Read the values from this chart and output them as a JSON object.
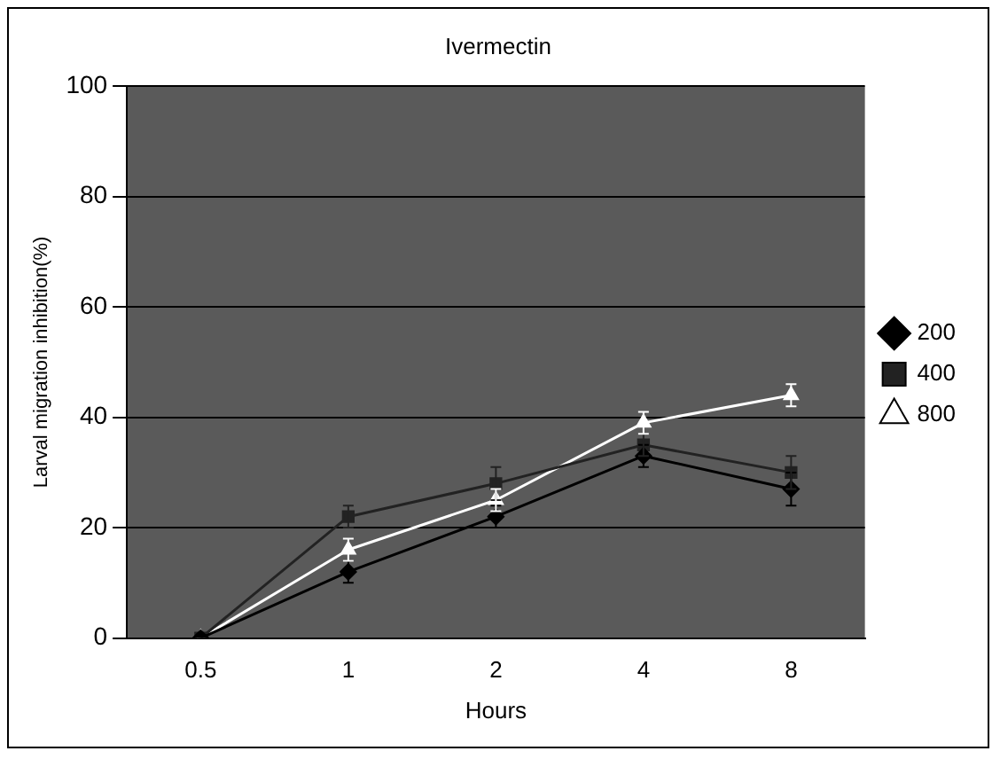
{
  "chart_data": {
    "type": "line",
    "title": "Ivermectin",
    "xlabel": "Hours",
    "ylabel": "Larval migration inhibition(%)",
    "categories": [
      "0.5",
      "1",
      "2",
      "4",
      "8"
    ],
    "series": [
      {
        "name": "200",
        "color": "#000000",
        "marker": "diamond",
        "values": [
          0,
          12,
          22,
          33,
          27
        ],
        "errors": [
          null,
          2,
          2,
          2,
          3
        ]
      },
      {
        "name": "400",
        "color": "#222222",
        "marker": "square",
        "values": [
          0,
          22,
          28,
          35,
          30
        ],
        "errors": [
          null,
          2,
          3,
          2,
          3
        ]
      },
      {
        "name": "800",
        "color": "#ffffff",
        "marker": "triangle",
        "values": [
          0,
          16,
          25,
          39,
          44
        ],
        "errors": [
          null,
          2,
          2,
          2,
          2
        ]
      }
    ],
    "ylim": [
      0,
      100
    ],
    "yticks": [
      0,
      20,
      40,
      60,
      80,
      100
    ],
    "grid": "y",
    "legend": "right"
  }
}
